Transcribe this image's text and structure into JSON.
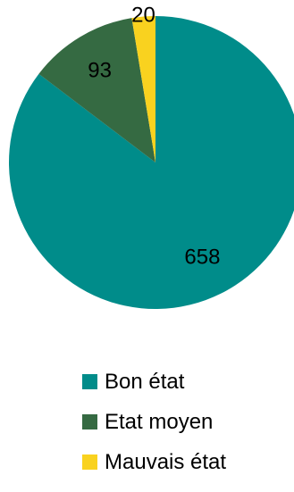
{
  "chart_data": {
    "type": "pie",
    "title": "",
    "categories": [
      "Bon état",
      "Etat moyen",
      "Mauvais état"
    ],
    "values": [
      658,
      93,
      20
    ],
    "colors": [
      "#008c8a",
      "#356a42",
      "#f9d21f"
    ],
    "data_labels": [
      "658",
      "93",
      "20"
    ],
    "start_angle": "12 o'clock",
    "direction": "clockwise",
    "legend": {
      "position": "bottom",
      "entries": [
        "Bon état",
        "Etat moyen",
        "Mauvais état"
      ]
    }
  }
}
